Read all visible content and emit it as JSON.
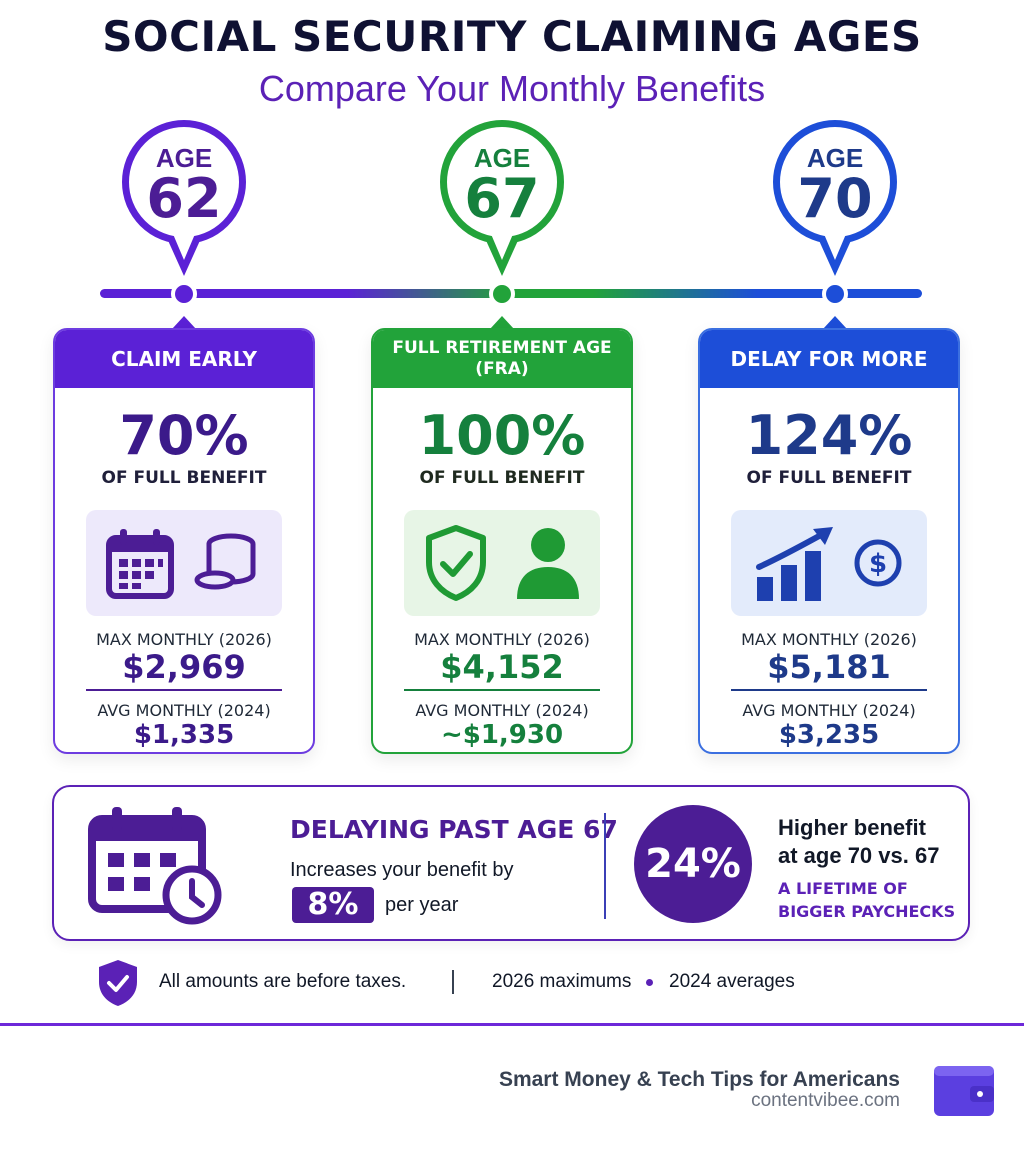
{
  "header": {
    "title": "SOCIAL SECURITY CLAIMING AGES",
    "subtitle": "Compare Your Monthly Benefits"
  },
  "colors": {
    "purple": "#5b21d6",
    "green": "#22a33a",
    "blue": "#1d4ed8",
    "dark_purple": "#4c1d95"
  },
  "ages": [
    {
      "pin_label": "AGE",
      "pin_number": "62",
      "card_title": "CLAIM EARLY",
      "percent": "70%",
      "percent_label": "OF FULL BENEFIT",
      "icons": [
        "calendar-icon",
        "coins-icon"
      ],
      "max_label": "MAX MONTHLY (2026)",
      "max_value": "$2,969",
      "avg_label": "AVG MONTHLY (2024)",
      "avg_value": "$1,335"
    },
    {
      "pin_label": "AGE",
      "pin_number": "67",
      "card_title": "FULL RETIREMENT AGE (FRA)",
      "percent": "100%",
      "percent_label": "OF FULL BENEFIT",
      "icons": [
        "shield-check-icon",
        "person-icon"
      ],
      "max_label": "MAX MONTHLY (2026)",
      "max_value": "$4,152",
      "avg_label": "AVG MONTHLY (2024)",
      "avg_value": "~$1,930"
    },
    {
      "pin_label": "AGE",
      "pin_number": "70",
      "card_title": "DELAY FOR MORE",
      "percent": "124%",
      "percent_label": "OF FULL BENEFIT",
      "icons": [
        "growth-chart-icon",
        "dollar-coin-icon"
      ],
      "max_label": "MAX MONTHLY (2026)",
      "max_value": "$5,181",
      "avg_label": "AVG MONTHLY (2024)",
      "avg_value": "$3,235"
    }
  ],
  "banner": {
    "heading": "DELAYING PAST AGE 67",
    "text": "Increases your benefit by",
    "rate": "8%",
    "rate_suffix": "per year",
    "big_percent": "24%",
    "right_line1": "Higher benefit",
    "right_line2": "at age 70 vs. 67",
    "tagline1": "A LIFETIME OF",
    "tagline2": "BIGGER PAYCHECKS",
    "icons": [
      "calendar-clock-icon"
    ]
  },
  "footnote": {
    "taxes": "All amounts are before taxes.",
    "maximums": "2026 maximums",
    "averages": "2024 averages",
    "icon": "shield-check-icon"
  },
  "brand": {
    "tagline": "Smart Money & Tech Tips for Americans",
    "url": "contentvibee.com",
    "icon": "wallet-icon"
  }
}
